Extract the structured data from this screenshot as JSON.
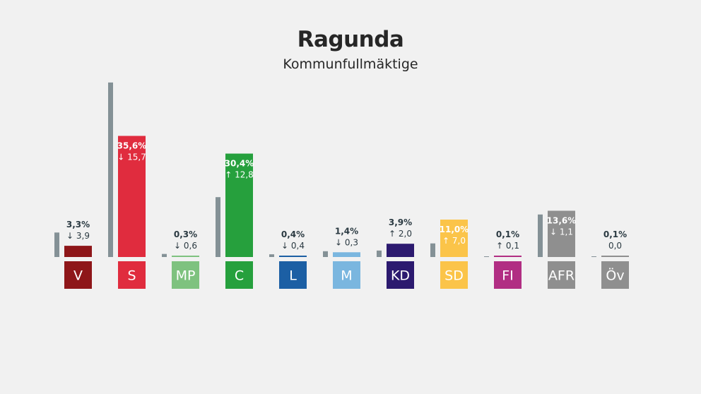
{
  "header": {
    "title": "Ragunda",
    "subtitle": "Kommunfullmäktige"
  },
  "colors": {
    "previous_bar": "#849196",
    "dark_text": "#2b3a42",
    "background": "#f1f1f1"
  },
  "chart_data": {
    "type": "bar",
    "title": "Ragunda",
    "subtitle": "Kommunfullmäktige",
    "categories": [
      "V",
      "S",
      "MP",
      "C",
      "L",
      "M",
      "KD",
      "SD",
      "FI",
      "AFR",
      "Öv"
    ],
    "series": [
      {
        "values": [
          3.3,
          35.6,
          0.3,
          30.4,
          0.4,
          1.4,
          3.9,
          11.0,
          0.1,
          13.6,
          0.1
        ]
      },
      {
        "values": [
          7.2,
          51.3,
          0.9,
          17.6,
          0.8,
          1.7,
          1.9,
          4.0,
          0.0,
          12.5,
          0.1
        ]
      }
    ],
    "labels": {
      "percent": [
        "3,3%",
        "35,6%",
        "0,3%",
        "30,4%",
        "0,4%",
        "1,4%",
        "3,9%",
        "11,0%",
        "0,1%",
        "13,6%",
        "0,1%"
      ],
      "change": [
        "3,9",
        "15,7",
        "0,6",
        "12,8",
        "0,4",
        "0,3",
        "2,0",
        "7,0",
        "0,1",
        "1,1",
        "0,0"
      ],
      "direction": [
        "down",
        "down",
        "down",
        "up",
        "down",
        "down",
        "up",
        "up",
        "up",
        "down",
        "none"
      ]
    },
    "party_colors": [
      "#8e1619",
      "#e02c3e",
      "#7ec27f",
      "#26a03d",
      "#1c5fa4",
      "#7ab6df",
      "#2c1a6f",
      "#fbc449",
      "#b12e83",
      "#8f8f8f",
      "#8f8f8f"
    ],
    "label_inside": [
      false,
      true,
      false,
      true,
      false,
      false,
      false,
      true,
      false,
      true,
      false
    ],
    "ylim": [
      0,
      55
    ],
    "grid": false,
    "legend": "none"
  }
}
